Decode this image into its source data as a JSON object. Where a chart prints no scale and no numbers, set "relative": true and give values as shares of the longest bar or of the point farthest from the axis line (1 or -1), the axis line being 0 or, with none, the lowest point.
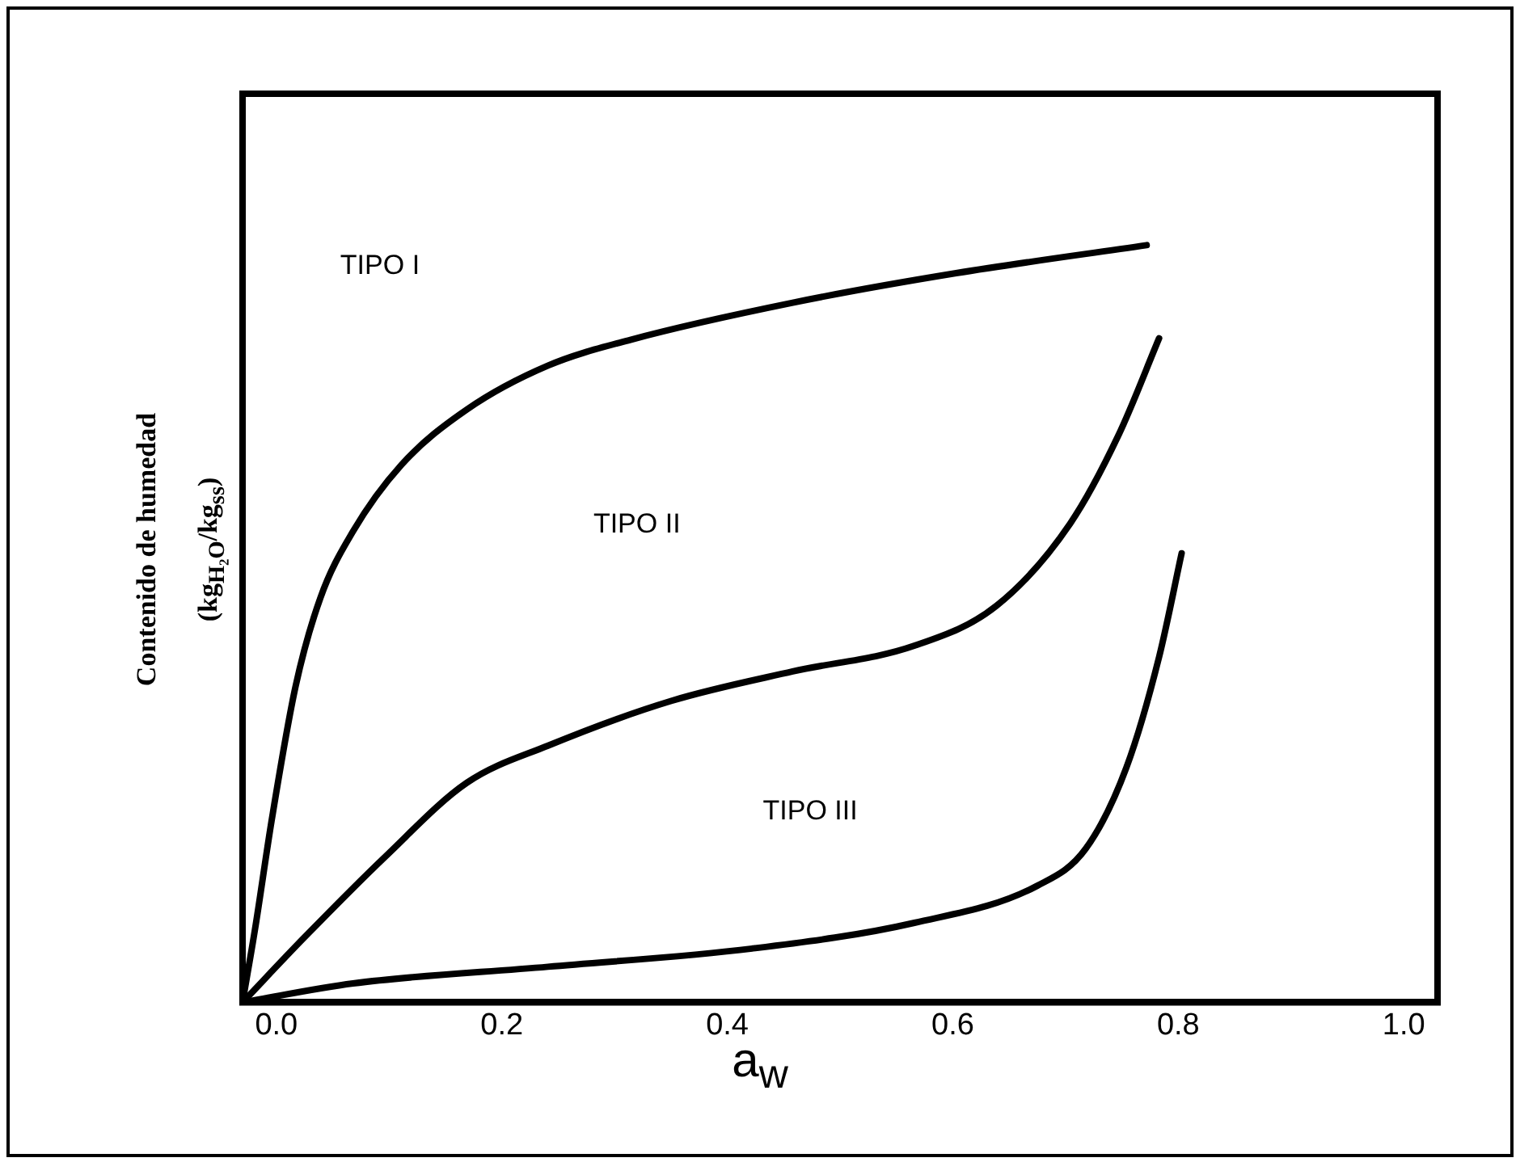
{
  "chart_data": {
    "type": "line",
    "relative": true,
    "xlabel": "a$_{w}$",
    "ylabel": "Contenido  de humedad (kg$_{H₂O}$/kg$_{ss}$)",
    "xlim": [
      -0.03,
      1.03
    ],
    "xticks": [
      {
        "value": 0,
        "label": "0.0"
      },
      0.2,
      0.4,
      0.6,
      0.8,
      {
        "value": 1,
        "label": "1.0"
      }
    ],
    "grid": false,
    "legend": false,
    "marker": "none",
    "line_style": "solid",
    "series": [
      {
        "color": "#000000",
        "x": [
          -0.03,
          -0.019,
          -0.004,
          0.017,
          0.039,
          0.068,
          0.111,
          0.169,
          0.241,
          0.314,
          0.458,
          0.603,
          0.772
        ],
        "values": [
          0,
          0.096,
          0.242,
          0.417,
          0.534,
          0.622,
          0.71,
          0.783,
          0.841,
          0.875,
          0.924,
          0.963,
          1
        ]
      },
      {
        "color": "#000000",
        "x": [
          -0.03,
          0.025,
          0.097,
          0.169,
          0.241,
          0.35,
          0.458,
          0.566,
          0.639,
          0.704,
          0.747,
          0.783
        ],
        "values": [
          0,
          0.086,
          0.193,
          0.29,
          0.339,
          0.398,
          0.437,
          0.471,
          0.524,
          0.632,
          0.749,
          0.877
        ]
      },
      {
        "color": "#000000",
        "x": [
          -0.03,
          0.068,
          0.241,
          0.422,
          0.566,
          0.675,
          0.718,
          0.754,
          0.783,
          0.803
        ],
        "values": [
          0,
          0.025,
          0.047,
          0.071,
          0.105,
          0.154,
          0.203,
          0.31,
          0.456,
          0.593
        ]
      }
    ],
    "annotations": [
      "TIPO I",
      "TIPO II",
      "TIPO III"
    ]
  }
}
